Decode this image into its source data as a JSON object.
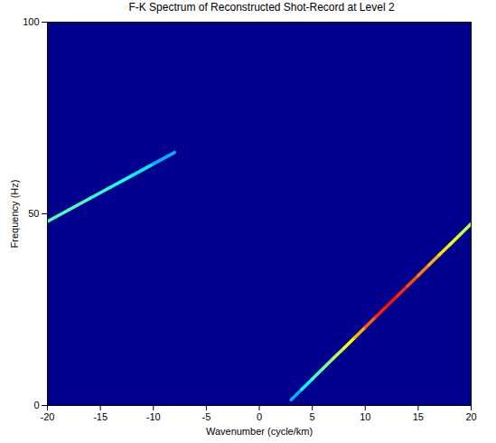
{
  "chart_data": {
    "type": "heatmap",
    "title": "F-K Spectrum of Reconstructed Shot-Record at Level 2",
    "x_label": "Wavenumber (cycle/km)",
    "y_label": "Frequency (Hz)",
    "xlim": [
      -20,
      20
    ],
    "xticks": [
      -20,
      -15,
      -10,
      -5,
      0,
      5,
      10,
      15,
      20
    ],
    "ylim": [
      0,
      100
    ],
    "yticks": [
      0,
      50,
      100
    ],
    "amplitude_range": [
      0,
      1
    ],
    "ridges": [
      {
        "x": [
          3,
          4,
          5,
          6,
          7,
          8,
          9,
          10,
          11,
          12,
          13,
          14,
          15,
          16,
          17,
          18,
          19,
          20
        ],
        "y": [
          1.5,
          4.2,
          6.9,
          9.6,
          12.3,
          15,
          17.7,
          20.4,
          23.1,
          25.8,
          28.5,
          31.2,
          33.9,
          36.6,
          39.3,
          42,
          44.7,
          47.4
        ],
        "amplitude": [
          0.3,
          0.38,
          0.45,
          0.5,
          0.55,
          0.62,
          0.7,
          0.78,
          0.84,
          0.86,
          0.84,
          0.8,
          0.75,
          0.7,
          0.65,
          0.6,
          0.56,
          0.52
        ]
      },
      {
        "x": [
          -20,
          -18,
          -16,
          -14,
          -12,
          -10,
          -8
        ],
        "y": [
          48,
          51,
          54,
          57,
          60,
          63,
          66
        ],
        "amplitude": [
          0.45,
          0.45,
          0.42,
          0.4,
          0.36,
          0.3,
          0.2
        ]
      }
    ]
  }
}
